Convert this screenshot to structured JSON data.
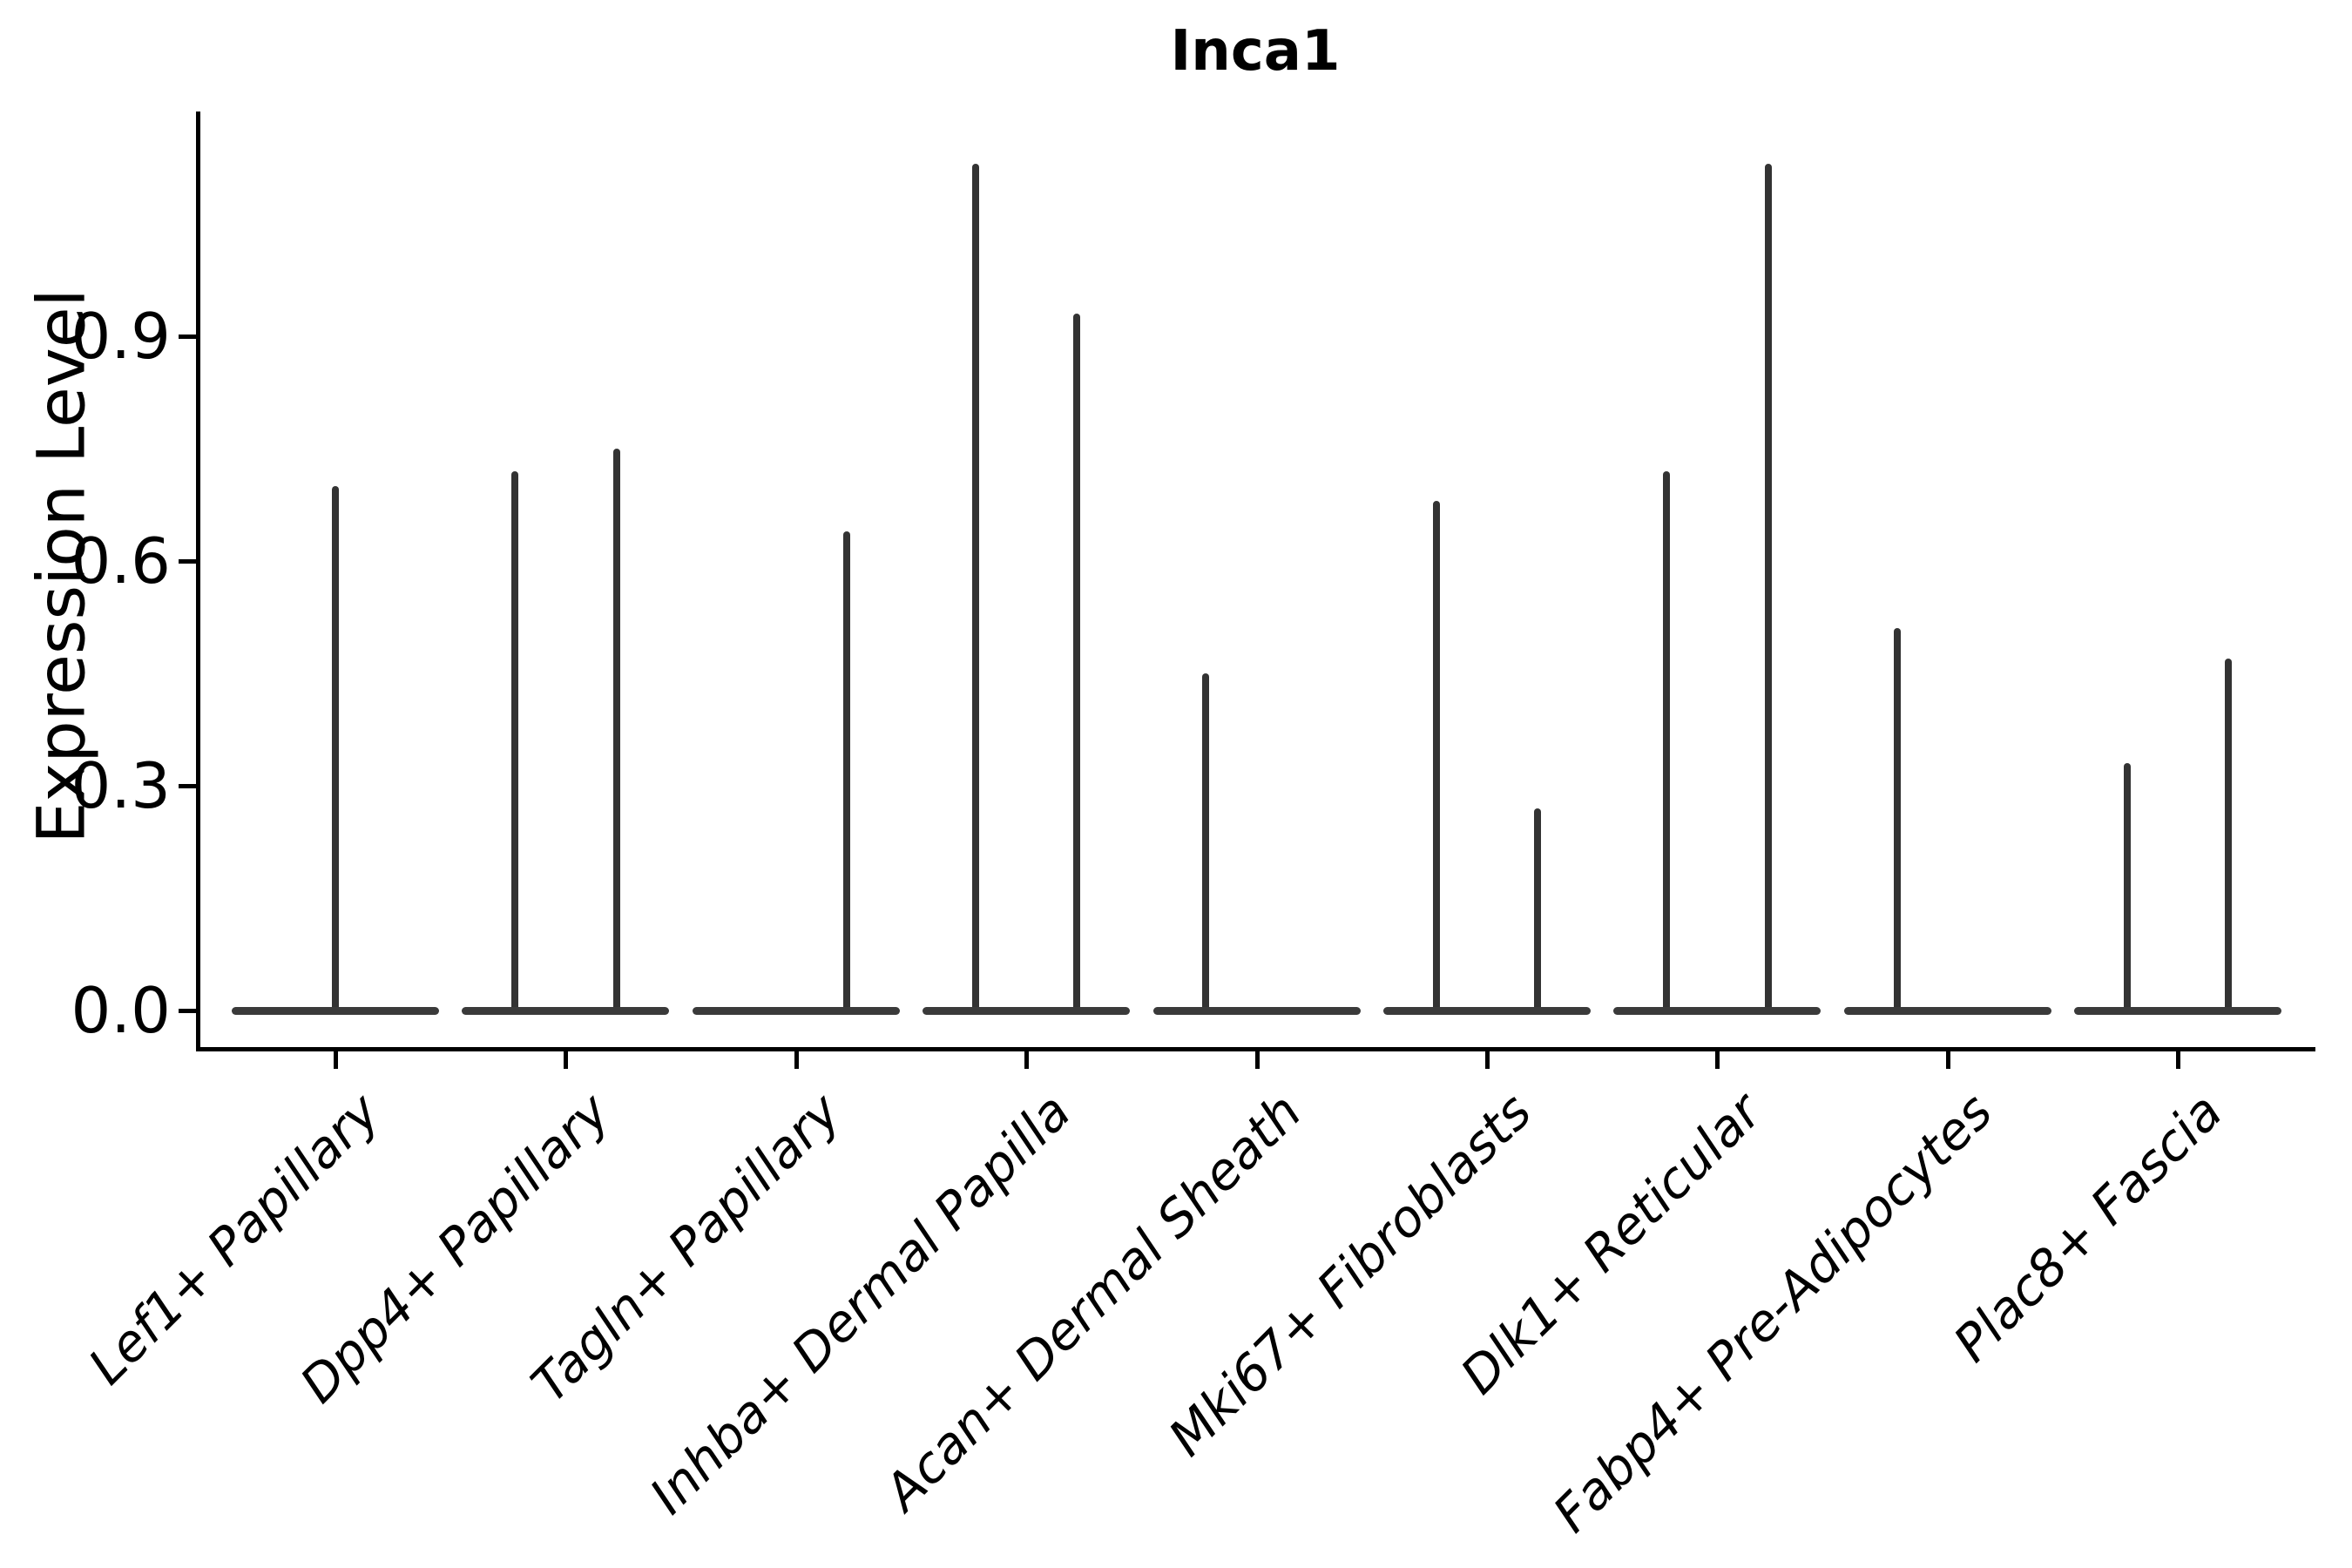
{
  "title": "Inca1",
  "axes": {
    "ylabel": "Expression Level",
    "xlabel": ""
  },
  "colors": {
    "background": "#ffffff",
    "axis": "#000000",
    "text": "#000000",
    "spike": "#333333",
    "violin_base": "#3a3a3a"
  },
  "chart_data": {
    "type": "violin",
    "title": "Inca1",
    "ylabel": "Expression Level",
    "xlabel": "",
    "grid": false,
    "legend": "none",
    "ylim": [
      -0.05,
      1.2
    ],
    "yticks": [
      {
        "value": 0.0,
        "label": "0.0"
      },
      {
        "value": 0.3,
        "label": "0.3"
      },
      {
        "value": 0.6,
        "label": "0.6"
      },
      {
        "value": 0.9,
        "label": "0.9"
      }
    ],
    "categories": [
      "Lef1+ Papillary",
      "Dpp4+ Papillary",
      "Tagln+ Papillary",
      "Inhba+ Dermal Papilla",
      "Acan+ Dermal Sheath",
      "Mki67+ Fibroblasts",
      "Dlk1+ Reticular",
      "Fabp4+ Pre-Adipocytes",
      "Plac8+ Fascia"
    ],
    "base_half_width": 0.45,
    "baseline_value": 0.0,
    "violins": [
      {
        "category": "Lef1+ Papillary",
        "spikes": [
          {
            "offset": 0.0,
            "max": 0.7
          }
        ]
      },
      {
        "category": "Dpp4+ Papillary",
        "spikes": [
          {
            "offset": -0.22,
            "max": 0.72
          },
          {
            "offset": 0.22,
            "max": 0.75
          }
        ]
      },
      {
        "category": "Tagln+ Papillary",
        "spikes": [
          {
            "offset": 0.22,
            "max": 0.64
          }
        ]
      },
      {
        "category": "Inhba+ Dermal Papilla",
        "spikes": [
          {
            "offset": -0.22,
            "max": 1.13
          },
          {
            "offset": 0.22,
            "max": 0.93
          }
        ]
      },
      {
        "category": "Acan+ Dermal Sheath",
        "spikes": [
          {
            "offset": -0.22,
            "max": 0.45
          }
        ]
      },
      {
        "category": "Mki67+ Fibroblasts",
        "spikes": [
          {
            "offset": -0.22,
            "max": 0.68
          },
          {
            "offset": 0.22,
            "max": 0.27
          }
        ]
      },
      {
        "category": "Dlk1+ Reticular",
        "spikes": [
          {
            "offset": -0.22,
            "max": 0.72
          },
          {
            "offset": 0.22,
            "max": 1.13
          }
        ]
      },
      {
        "category": "Fabp4+ Pre-Adipocytes",
        "spikes": [
          {
            "offset": -0.22,
            "max": 0.51
          }
        ]
      },
      {
        "category": "Plac8+ Fascia",
        "spikes": [
          {
            "offset": -0.22,
            "max": 0.33
          },
          {
            "offset": 0.22,
            "max": 0.47
          }
        ]
      }
    ]
  }
}
